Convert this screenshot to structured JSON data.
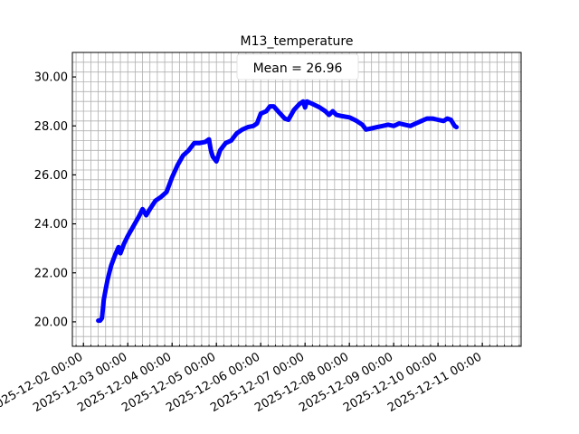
{
  "chart_data": {
    "type": "line",
    "title": "M13_temperature",
    "annotation": "Mean = 26.96",
    "xlabel": "",
    "ylabel": "",
    "x_axis": "datetime",
    "xlim": [
      "2025-12-01T18:00",
      "2025-12-11T21:00"
    ],
    "ylim": [
      19.0,
      31.0
    ],
    "y_ticks": [
      20.0,
      22.0,
      24.0,
      26.0,
      28.0,
      30.0
    ],
    "y_tick_labels": [
      "20.00",
      "22.00",
      "24.00",
      "26.00",
      "28.00",
      "30.00"
    ],
    "x_ticks": [
      "2025-12-02T00:00",
      "2025-12-03T00:00",
      "2025-12-04T00:00",
      "2025-12-05T00:00",
      "2025-12-06T00:00",
      "2025-12-07T00:00",
      "2025-12-08T00:00",
      "2025-12-09T00:00",
      "2025-12-10T00:00",
      "2025-12-11T00:00"
    ],
    "x_tick_labels": [
      "2025-12-02 00:00",
      "2025-12-03 00:00",
      "2025-12-04 00:00",
      "2025-12-05 00:00",
      "2025-12-06 00:00",
      "2025-12-07 00:00",
      "2025-12-08 00:00",
      "2025-12-09 00:00",
      "2025-12-10 00:00",
      "2025-12-11 00:00"
    ],
    "grid": true,
    "series": [
      {
        "color": "#0000ff",
        "points": [
          [
            "2025-12-02T08:00",
            20.05
          ],
          [
            "2025-12-02T09:00",
            20.05
          ],
          [
            "2025-12-02T10:00",
            20.15
          ],
          [
            "2025-12-02T11:00",
            20.9
          ],
          [
            "2025-12-02T12:00",
            21.3
          ],
          [
            "2025-12-02T13:00",
            21.7
          ],
          [
            "2025-12-02T14:00",
            22.0
          ],
          [
            "2025-12-02T15:00",
            22.3
          ],
          [
            "2025-12-02T17:00",
            22.7
          ],
          [
            "2025-12-02T19:00",
            23.05
          ],
          [
            "2025-12-02T20:00",
            22.8
          ],
          [
            "2025-12-02T22:00",
            23.2
          ],
          [
            "2025-12-03T00:00",
            23.5
          ],
          [
            "2025-12-03T03:00",
            23.9
          ],
          [
            "2025-12-03T06:00",
            24.3
          ],
          [
            "2025-12-03T08:00",
            24.6
          ],
          [
            "2025-12-03T10:00",
            24.35
          ],
          [
            "2025-12-03T12:00",
            24.6
          ],
          [
            "2025-12-03T15:00",
            24.95
          ],
          [
            "2025-12-03T18:00",
            25.1
          ],
          [
            "2025-12-03T21:00",
            25.3
          ],
          [
            "2025-12-04T00:00",
            25.9
          ],
          [
            "2025-12-04T03:00",
            26.4
          ],
          [
            "2025-12-04T06:00",
            26.8
          ],
          [
            "2025-12-04T09:00",
            27.0
          ],
          [
            "2025-12-04T12:00",
            27.3
          ],
          [
            "2025-12-04T15:00",
            27.3
          ],
          [
            "2025-12-04T18:00",
            27.35
          ],
          [
            "2025-12-04T20:00",
            27.45
          ],
          [
            "2025-12-04T21:00",
            27.0
          ],
          [
            "2025-12-04T22:00",
            26.75
          ],
          [
            "2025-12-05T00:00",
            26.55
          ],
          [
            "2025-12-05T02:00",
            27.0
          ],
          [
            "2025-12-05T05:00",
            27.3
          ],
          [
            "2025-12-05T08:00",
            27.4
          ],
          [
            "2025-12-05T11:00",
            27.7
          ],
          [
            "2025-12-05T14:00",
            27.85
          ],
          [
            "2025-12-05T17:00",
            27.95
          ],
          [
            "2025-12-05T20:00",
            28.0
          ],
          [
            "2025-12-05T22:00",
            28.1
          ],
          [
            "2025-12-06T00:00",
            28.5
          ],
          [
            "2025-12-06T03:00",
            28.6
          ],
          [
            "2025-12-06T05:00",
            28.8
          ],
          [
            "2025-12-06T07:00",
            28.8
          ],
          [
            "2025-12-06T10:00",
            28.55
          ],
          [
            "2025-12-06T13:00",
            28.3
          ],
          [
            "2025-12-06T15:00",
            28.25
          ],
          [
            "2025-12-06T18:00",
            28.65
          ],
          [
            "2025-12-06T21:00",
            28.9
          ],
          [
            "2025-12-06T23:00",
            29.0
          ],
          [
            "2025-12-07T00:00",
            28.75
          ],
          [
            "2025-12-07T01:00",
            29.0
          ],
          [
            "2025-12-07T04:00",
            28.9
          ],
          [
            "2025-12-07T08:00",
            28.75
          ],
          [
            "2025-12-07T11:00",
            28.6
          ],
          [
            "2025-12-07T13:00",
            28.45
          ],
          [
            "2025-12-07T15:00",
            28.6
          ],
          [
            "2025-12-07T17:00",
            28.45
          ],
          [
            "2025-12-07T20:00",
            28.4
          ],
          [
            "2025-12-08T00:00",
            28.35
          ],
          [
            "2025-12-08T04:00",
            28.2
          ],
          [
            "2025-12-08T07:00",
            28.05
          ],
          [
            "2025-12-08T09:00",
            27.85
          ],
          [
            "2025-12-08T12:00",
            27.9
          ],
          [
            "2025-12-08T15:00",
            27.95
          ],
          [
            "2025-12-08T18:00",
            28.0
          ],
          [
            "2025-12-08T21:00",
            28.05
          ],
          [
            "2025-12-09T00:00",
            28.0
          ],
          [
            "2025-12-09T03:00",
            28.1
          ],
          [
            "2025-12-09T06:00",
            28.05
          ],
          [
            "2025-12-09T09:00",
            28.0
          ],
          [
            "2025-12-09T12:00",
            28.1
          ],
          [
            "2025-12-09T15:00",
            28.2
          ],
          [
            "2025-12-09T18:00",
            28.3
          ],
          [
            "2025-12-09T21:00",
            28.3
          ],
          [
            "2025-12-10T00:00",
            28.25
          ],
          [
            "2025-12-10T03:00",
            28.2
          ],
          [
            "2025-12-10T05:00",
            28.3
          ],
          [
            "2025-12-10T07:00",
            28.25
          ],
          [
            "2025-12-10T09:00",
            28.0
          ],
          [
            "2025-12-10T10:00",
            27.95
          ]
        ]
      }
    ]
  }
}
